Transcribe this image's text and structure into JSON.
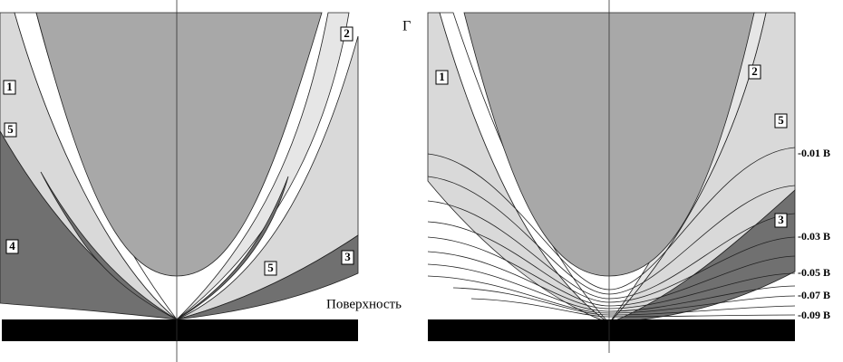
{
  "left_panel": {
    "region_labels": [
      "1",
      "5",
      "4",
      "2",
      "5",
      "3"
    ],
    "surface_label": "Поверхность"
  },
  "right_panel": {
    "title": "Г",
    "region_labels": [
      "1",
      "2",
      "5",
      "3"
    ],
    "potential_labels": [
      "-0.01 В",
      "-0.03 В",
      "-0.05 В",
      "-0.07 В",
      "-0.09 В"
    ]
  }
}
